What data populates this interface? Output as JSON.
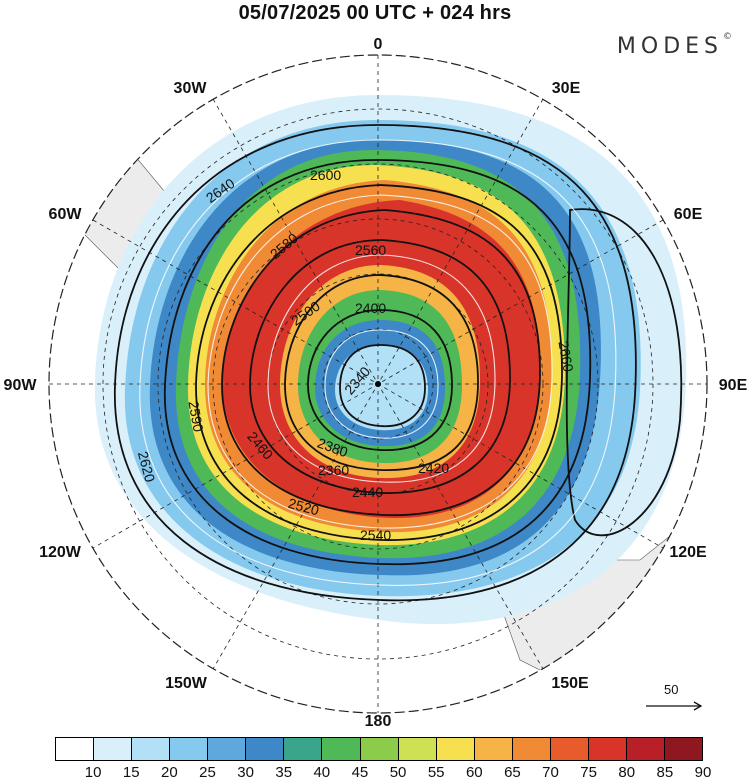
{
  "title": "05/07/2025  00 UTC  + 024 hrs",
  "brand": {
    "name": "MODES",
    "mark": "©"
  },
  "map": {
    "projection": "polar stereographic",
    "hemisphere": "southern",
    "longitude_labels": [
      "0",
      "30E",
      "60E",
      "90E",
      "120E",
      "150E",
      "180",
      "150W",
      "120W",
      "90W",
      "60W",
      "30W"
    ],
    "contour_labels": [
      "2640",
      "2600",
      "2580",
      "2560",
      "2590",
      "2500",
      "2400",
      "2340",
      "2380",
      "2360",
      "2460",
      "2420",
      "2440",
      "2520",
      "2540",
      "2620",
      "2660"
    ],
    "fill_field": "wind speed (shaded)",
    "contour_field": "geopotential height (contours)",
    "vectors": "streamlines (white arrows)"
  },
  "reference_vector": {
    "label": "50"
  },
  "colorbar": {
    "ticks": [
      "10",
      "15",
      "20",
      "25",
      "30",
      "35",
      "40",
      "45",
      "50",
      "55",
      "60",
      "65",
      "70",
      "75",
      "80",
      "85",
      "90"
    ],
    "colors": [
      "#ffffff",
      "#d9f0fb",
      "#b2e0f7",
      "#86c9ef",
      "#5fa8dd",
      "#3e88c7",
      "#3aa58a",
      "#4fb857",
      "#8bcc4a",
      "#cfe052",
      "#f7e050",
      "#f5b445",
      "#f08a35",
      "#e85c2c",
      "#d8342a",
      "#b81f26",
      "#8e1720"
    ]
  }
}
